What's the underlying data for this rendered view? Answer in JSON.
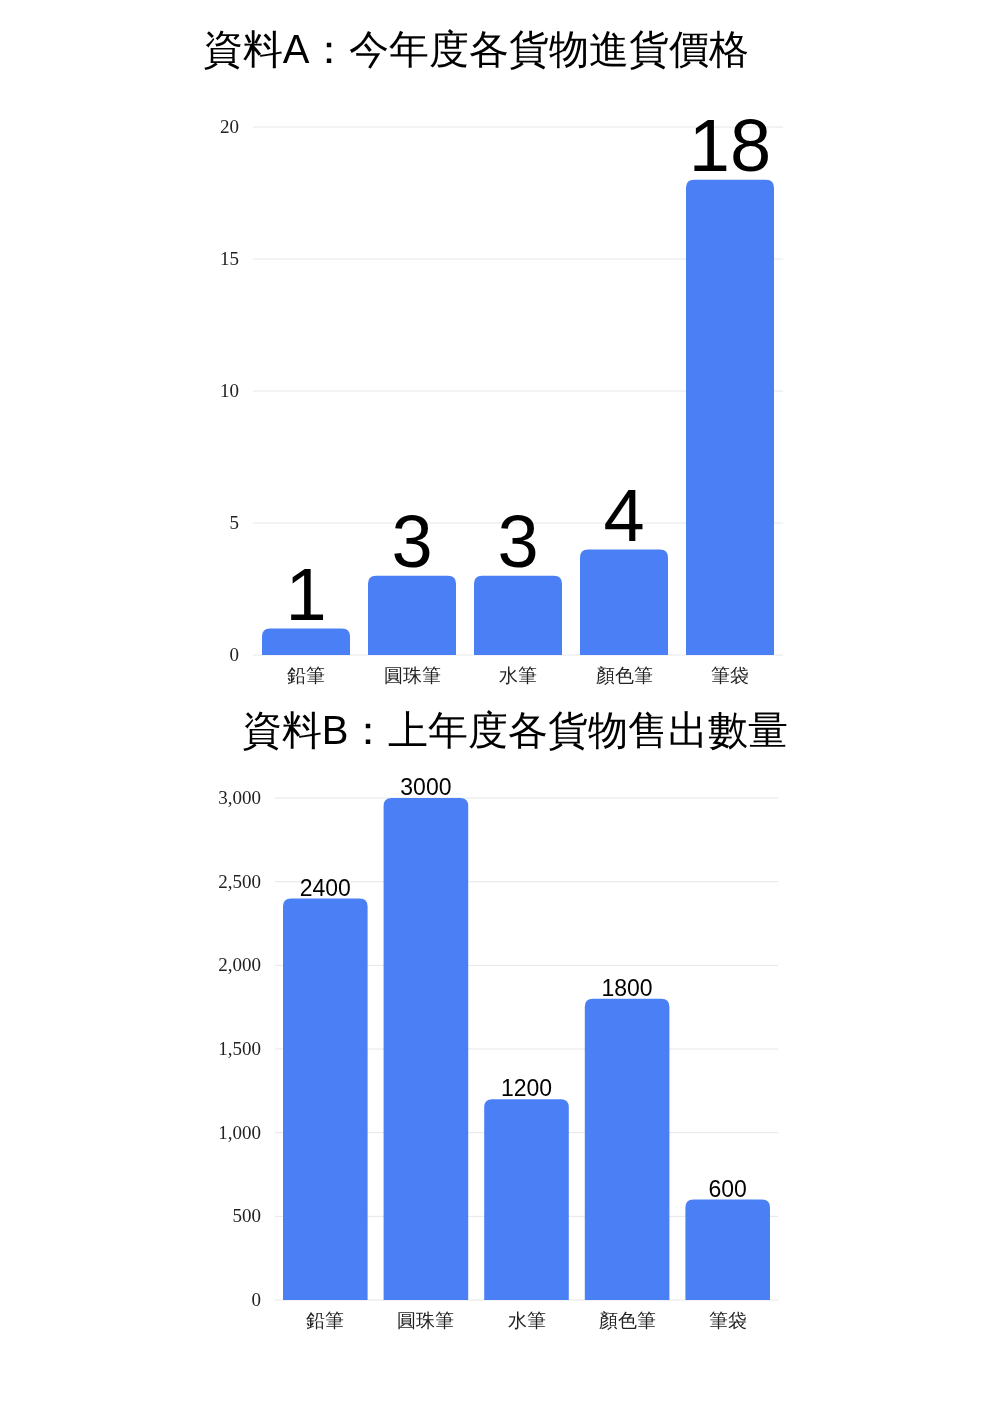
{
  "chart_data": [
    {
      "type": "bar",
      "title": "資料A：今年度各貨物進貨價格",
      "categories": [
        "鉛筆",
        "圓珠筆",
        "水筆",
        "顏色筆",
        "筆袋"
      ],
      "values": [
        1,
        3,
        3,
        4,
        18
      ],
      "color": "#4a7ff5",
      "ylim": [
        0,
        20
      ],
      "yticks": [
        0,
        5,
        10,
        15,
        20
      ],
      "grid": "y",
      "data_labels": true
    },
    {
      "type": "bar",
      "title": "資料B：上年度各貨物售出數量",
      "categories": [
        "鉛筆",
        "圓珠筆",
        "水筆",
        "顏色筆",
        "筆袋"
      ],
      "values": [
        2400,
        3000,
        1200,
        1800,
        600
      ],
      "color": "#4a7ff5",
      "ylim": [
        0,
        3000
      ],
      "yticks": [
        0,
        500,
        {
          "value": 1000,
          "label": "1,000"
        },
        {
          "value": 1500,
          "label": "1,500"
        },
        {
          "value": 2000,
          "label": "2,000"
        },
        {
          "value": 2500,
          "label": "2,500"
        },
        {
          "value": 3000,
          "label": "3,000"
        }
      ],
      "grid": "y",
      "data_labels": true
    }
  ]
}
